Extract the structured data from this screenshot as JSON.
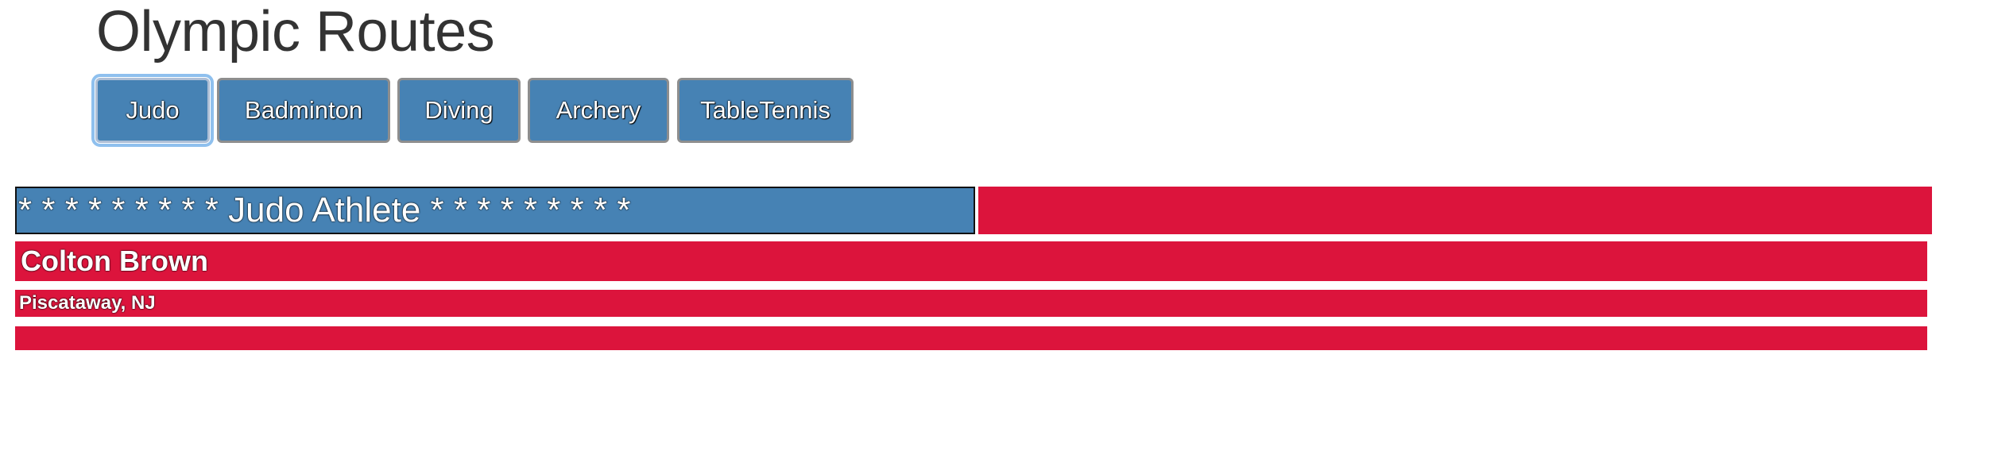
{
  "page": {
    "title": "Olympic Routes"
  },
  "tabs": [
    {
      "label": "Judo",
      "active": true
    },
    {
      "label": "Badminton",
      "active": false
    },
    {
      "label": "Diving",
      "active": false
    },
    {
      "label": "Archery",
      "active": false
    },
    {
      "label": "TableTennis",
      "active": false
    }
  ],
  "card": {
    "header": "* * * * * * * * * Judo Athlete * * * * * * * * *",
    "athlete_name": "Colton Brown",
    "athlete_location": "Piscataway, NJ",
    "extra": ""
  },
  "colors": {
    "tab_blue": "#4682b4",
    "card_red": "#dc143c",
    "title_text": "#333333"
  }
}
